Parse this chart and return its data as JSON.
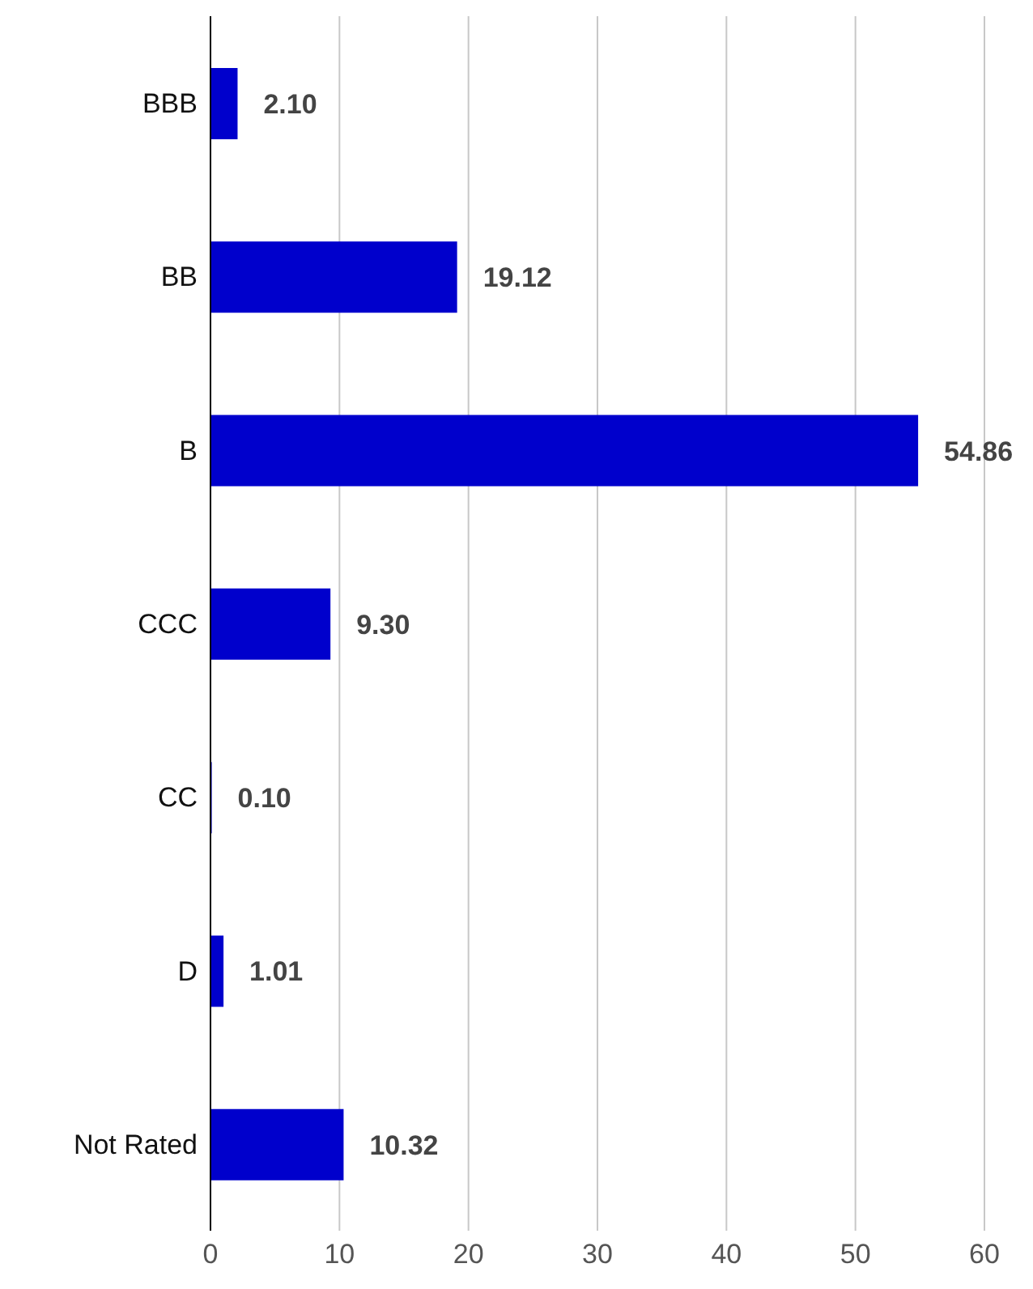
{
  "chart_data": {
    "type": "bar",
    "orientation": "horizontal",
    "categories": [
      "BBB",
      "BB",
      "B",
      "CCC",
      "CC",
      "D",
      "Not Rated"
    ],
    "values": [
      2.1,
      19.12,
      54.86,
      9.3,
      0.1,
      1.01,
      10.32
    ],
    "value_labels": [
      "2.10",
      "19.12",
      "54.86",
      "9.30",
      "0.10",
      "1.01",
      "10.32"
    ],
    "color": "#0000cc",
    "xlim": [
      0,
      60
    ],
    "xticks": [
      0,
      10,
      20,
      30,
      40,
      50,
      60
    ],
    "grid": "x",
    "legend": false
  }
}
